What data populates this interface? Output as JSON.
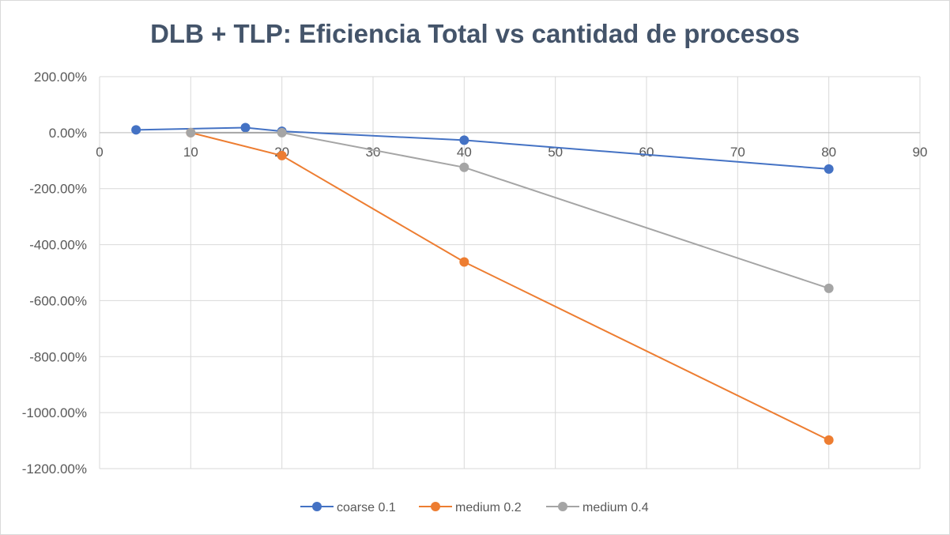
{
  "chart_data": {
    "type": "scatter",
    "title": "DLB + TLP: Eficiencia Total vs cantidad de procesos",
    "xlabel": "",
    "ylabel": "",
    "xlim": [
      0,
      90
    ],
    "ylim": [
      -1200,
      200
    ],
    "x_ticks": [
      0,
      10,
      20,
      30,
      40,
      50,
      60,
      70,
      80,
      90
    ],
    "y_ticks": [
      200,
      0,
      -200,
      -400,
      -600,
      -800,
      -1000,
      -1200
    ],
    "y_tick_labels": [
      "200.00%",
      "0.00%",
      "-200.00%",
      "-400.00%",
      "-600.00%",
      "-800.00%",
      "-1000.00%",
      "-1200.00%"
    ],
    "grid": true,
    "legend_position": "bottom",
    "series": [
      {
        "name": "coarse 0.1",
        "color": "#4472c4",
        "points": [
          [
            4,
            10
          ],
          [
            16,
            18
          ],
          [
            20,
            5
          ],
          [
            40,
            -27
          ],
          [
            80,
            -130
          ]
        ]
      },
      {
        "name": "medium 0.2",
        "color": "#ed7d31",
        "points": [
          [
            10,
            0
          ],
          [
            20,
            -82
          ],
          [
            40,
            -462
          ],
          [
            80,
            -1098
          ]
        ]
      },
      {
        "name": "medium 0.4",
        "color": "#a5a5a5",
        "points": [
          [
            10,
            0
          ],
          [
            20,
            0
          ],
          [
            40,
            -124
          ],
          [
            80,
            -556
          ]
        ]
      }
    ]
  }
}
